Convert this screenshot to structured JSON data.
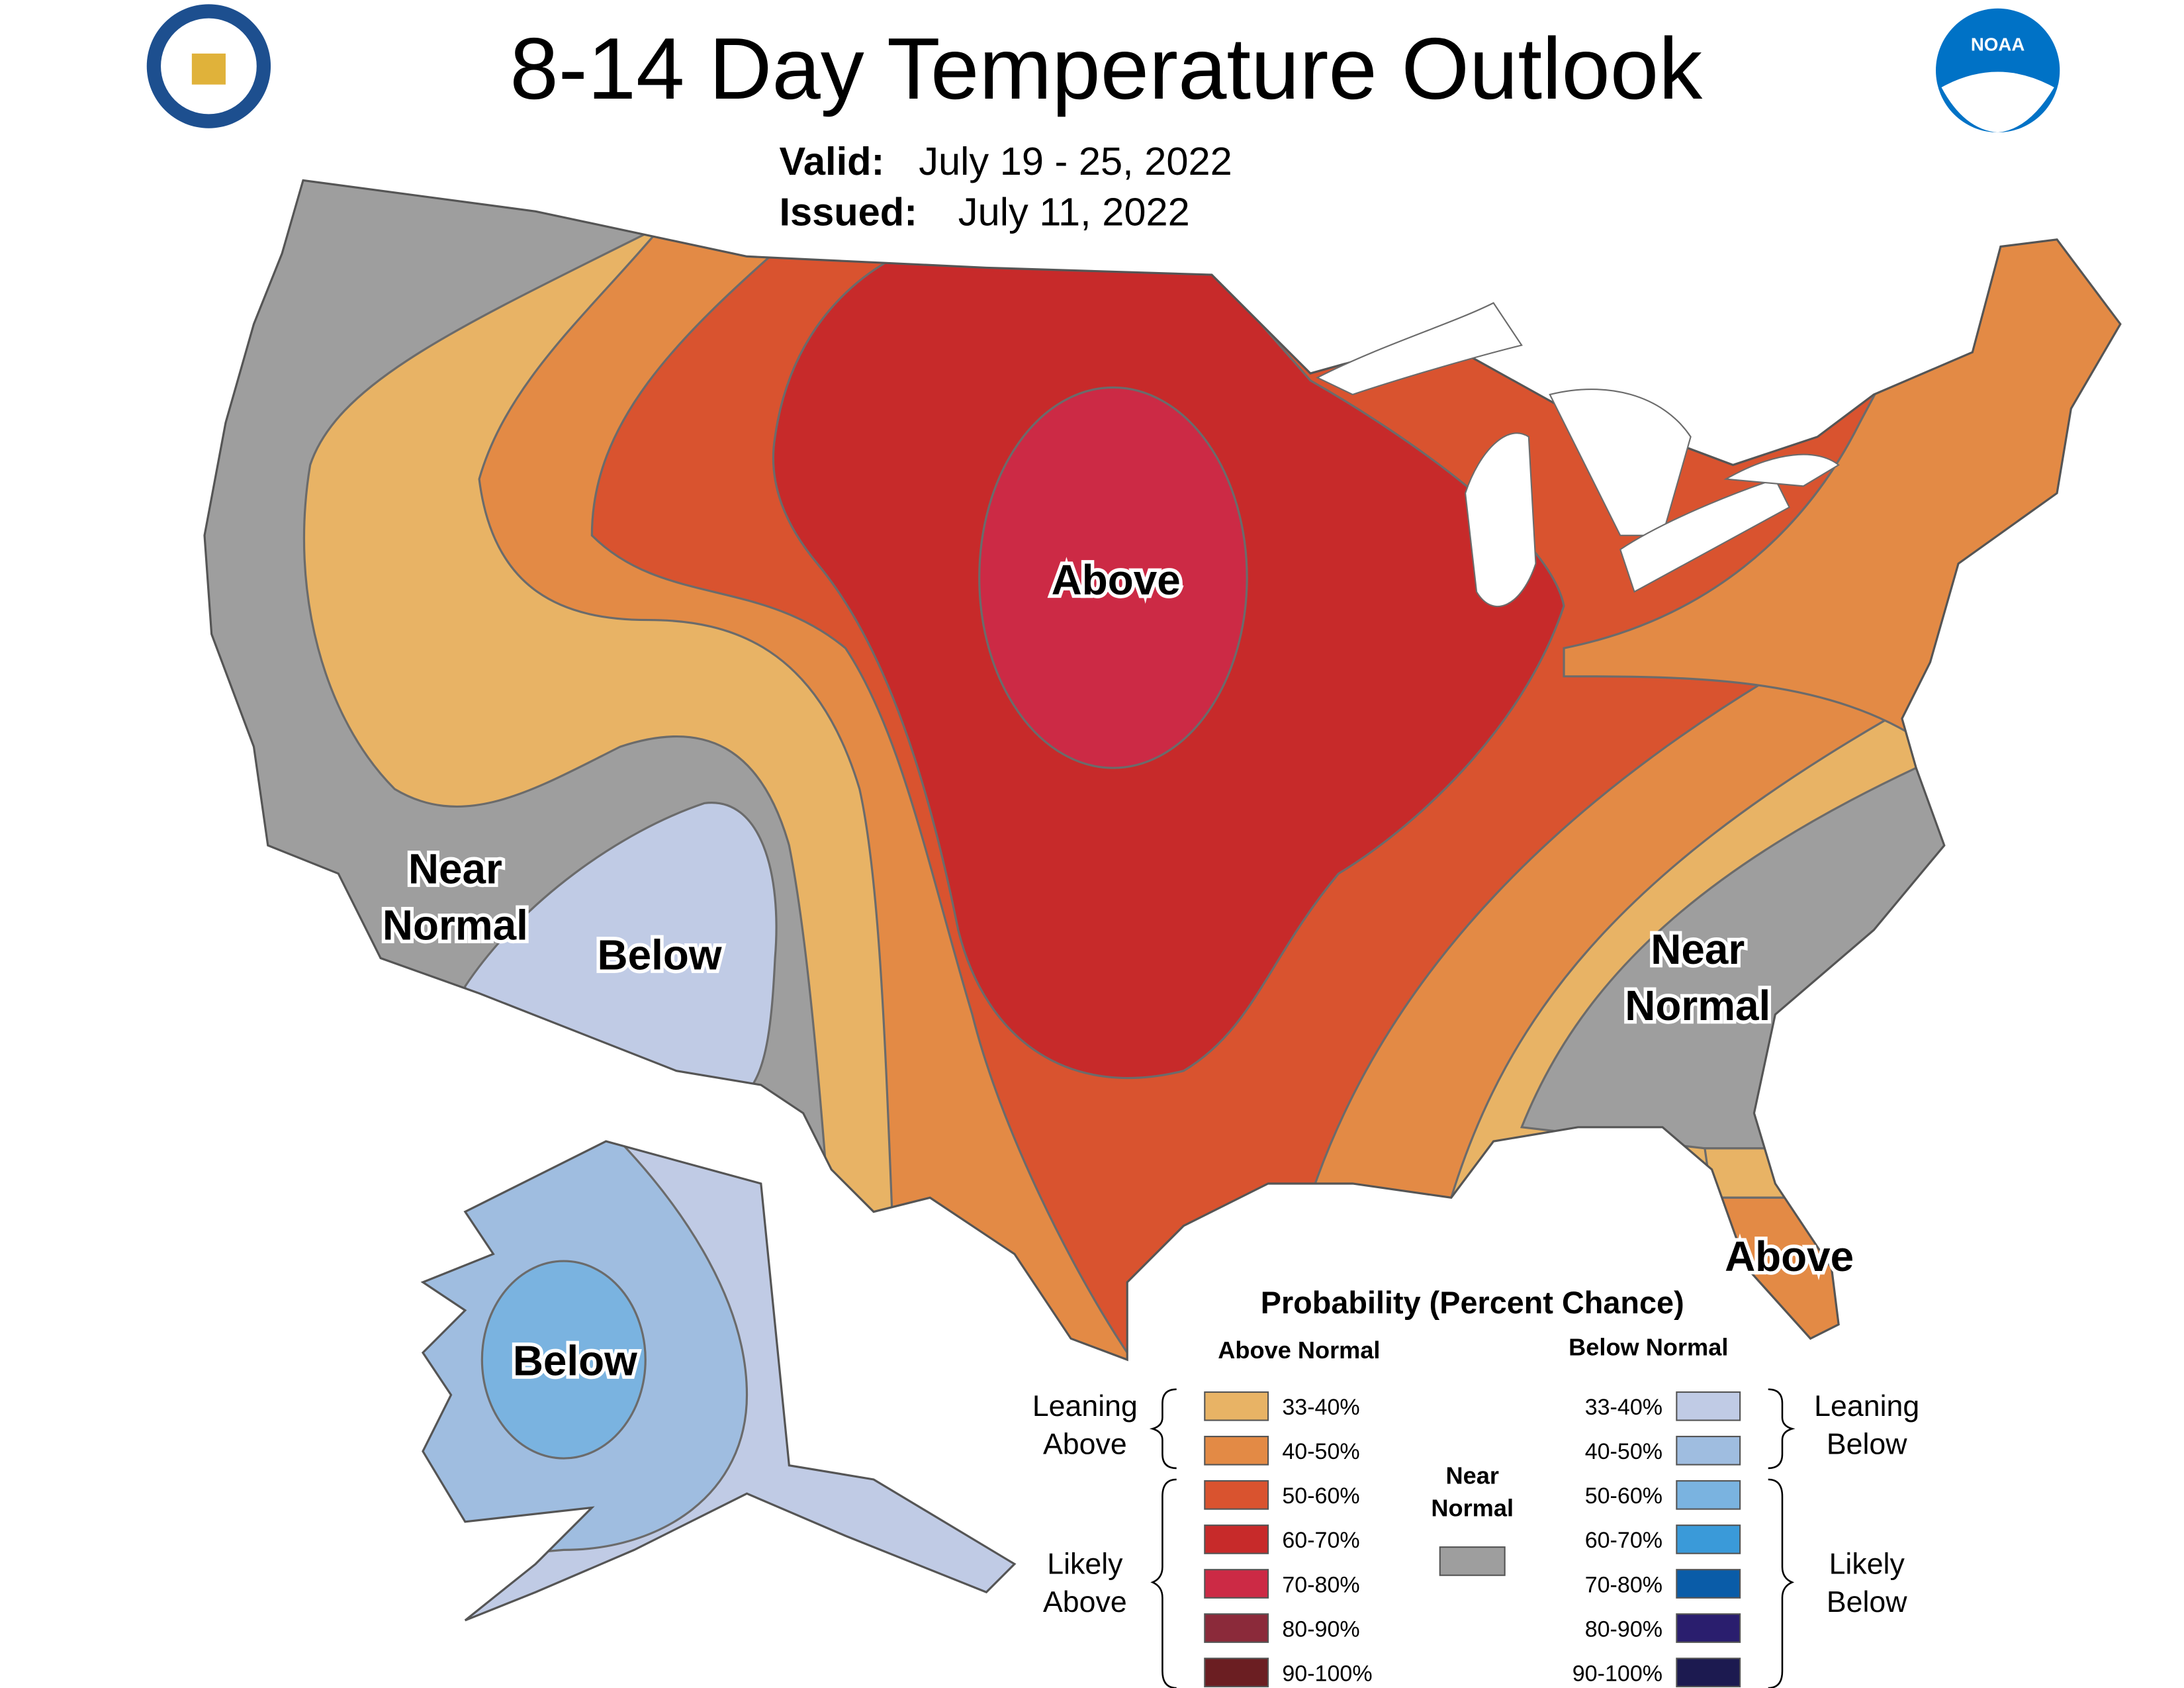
{
  "header": {
    "title": "8-14 Day Temperature Outlook",
    "valid_label": "Valid:",
    "valid": "July 19 - 25, 2022",
    "issued_label": "Issued:",
    "issued": "July 11, 2022",
    "logo_text": "NOAA"
  },
  "map_labels": [
    {
      "lines": [
        "Above"
      ]
    },
    {
      "lines": [
        "Near",
        "Normal"
      ]
    },
    {
      "lines": [
        "Below"
      ]
    },
    {
      "lines": [
        "Near",
        "Normal"
      ]
    },
    {
      "lines": [
        "Above"
      ]
    },
    {
      "lines": [
        "Below"
      ]
    }
  ],
  "legend": {
    "title": "Probability (Percent Chance)",
    "above_header": "Above Normal",
    "below_header": "Below Normal",
    "above": [
      {
        "label": "33-40%",
        "color": "#e8b365"
      },
      {
        "label": "40-50%",
        "color": "#e38a45"
      },
      {
        "label": "50-60%",
        "color": "#d9532f"
      },
      {
        "label": "60-70%",
        "color": "#c72a2a"
      },
      {
        "label": "70-80%",
        "color": "#cc2a45"
      },
      {
        "label": "80-90%",
        "color": "#8b2a3a"
      },
      {
        "label": "90-100%",
        "color": "#6b1e22"
      }
    ],
    "below": [
      {
        "label": "33-40%",
        "color": "#c0cbe5"
      },
      {
        "label": "40-50%",
        "color": "#9fbde0"
      },
      {
        "label": "50-60%",
        "color": "#7ab3e0"
      },
      {
        "label": "60-70%",
        "color": "#3a9ad9"
      },
      {
        "label": "70-80%",
        "color": "#0a5ca8"
      },
      {
        "label": "80-90%",
        "color": "#2a1e6e"
      },
      {
        "label": "90-100%",
        "color": "#1c1a50"
      }
    ],
    "near": {
      "lines": [
        "Near",
        "Normal"
      ],
      "color": "#9e9e9e"
    },
    "brackets": {
      "leaning_above": [
        "Leaning",
        "Above"
      ],
      "likely_above": [
        "Likely",
        "Above"
      ],
      "leaning_below": [
        "Leaning",
        "Below"
      ],
      "likely_below": [
        "Likely",
        "Below"
      ]
    }
  }
}
